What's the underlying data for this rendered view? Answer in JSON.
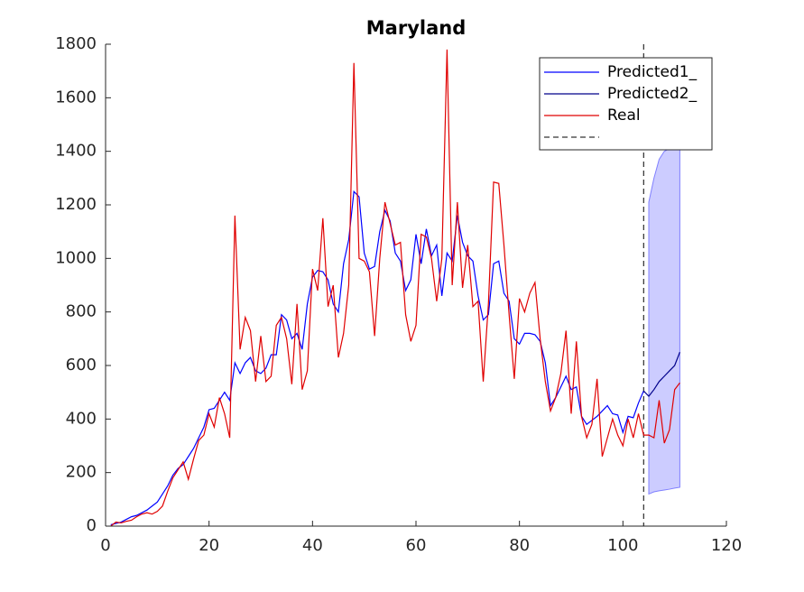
{
  "chart_data": {
    "type": "line",
    "title": "Maryland",
    "x": [
      1,
      2,
      3,
      4,
      5,
      6,
      7,
      8,
      9,
      10,
      11,
      12,
      13,
      14,
      15,
      16,
      17,
      18,
      19,
      20,
      21,
      22,
      23,
      24,
      25,
      26,
      27,
      28,
      29,
      30,
      31,
      32,
      33,
      34,
      35,
      36,
      37,
      38,
      39,
      40,
      41,
      42,
      43,
      44,
      45,
      46,
      47,
      48,
      49,
      50,
      51,
      52,
      53,
      54,
      55,
      56,
      57,
      58,
      59,
      60,
      61,
      62,
      63,
      64,
      65,
      66,
      67,
      68,
      69,
      70,
      71,
      72,
      73,
      74,
      75,
      76,
      77,
      78,
      79,
      80,
      81,
      82,
      83,
      84,
      85,
      86,
      87,
      88,
      89,
      90,
      91,
      92,
      93,
      94,
      95,
      96,
      97,
      98,
      99,
      100,
      101,
      102,
      103,
      104,
      105,
      106,
      107,
      108,
      109,
      110,
      111
    ],
    "series": [
      {
        "name": "Predicted1_",
        "color": "#0000ff",
        "values": [
          5,
          10,
          15,
          25,
          35,
          40,
          50,
          60,
          75,
          90,
          120,
          150,
          190,
          215,
          230,
          260,
          290,
          330,
          370,
          435,
          440,
          470,
          500,
          470,
          610,
          570,
          610,
          630,
          580,
          570,
          590,
          640,
          640,
          790,
          770,
          700,
          720,
          660,
          830,
          930,
          955,
          950,
          920,
          830,
          800,
          980,
          1070,
          1250,
          1230,
          1020,
          960,
          970,
          1100,
          1180,
          1140,
          1020,
          990,
          880,
          920,
          1090,
          980,
          1110,
          1010,
          1050,
          860,
          1020,
          990,
          1160,
          1060,
          1010,
          990,
          860,
          770,
          790,
          980,
          990,
          870,
          840,
          700,
          680,
          720,
          720,
          715,
          690,
          610,
          450,
          480,
          520,
          560,
          510,
          520,
          410,
          380,
          395,
          410,
          430,
          450,
          420,
          415,
          350,
          410,
          405,
          460,
          505,
          null,
          null,
          null,
          null,
          null,
          null,
          null
        ]
      },
      {
        "name": "Predicted2_",
        "color": "#00008b",
        "values": [
          null,
          null,
          null,
          null,
          null,
          null,
          null,
          null,
          null,
          null,
          null,
          null,
          null,
          null,
          null,
          null,
          null,
          null,
          null,
          null,
          null,
          null,
          null,
          null,
          null,
          null,
          null,
          null,
          null,
          null,
          null,
          null,
          null,
          null,
          null,
          null,
          null,
          null,
          null,
          null,
          null,
          null,
          null,
          null,
          null,
          null,
          null,
          null,
          null,
          null,
          null,
          null,
          null,
          null,
          null,
          null,
          null,
          null,
          null,
          null,
          null,
          null,
          null,
          null,
          null,
          null,
          null,
          null,
          null,
          null,
          null,
          null,
          null,
          null,
          null,
          null,
          null,
          null,
          null,
          null,
          null,
          null,
          null,
          null,
          null,
          null,
          null,
          null,
          null,
          null,
          null,
          null,
          null,
          null,
          null,
          null,
          null,
          null,
          null,
          null,
          null,
          null,
          null,
          505,
          485,
          510,
          540,
          560,
          580,
          600,
          650
        ]
      },
      {
        "name": "Real",
        "color": "#e00000",
        "values": [
          0,
          15,
          12,
          18,
          22,
          35,
          45,
          50,
          45,
          55,
          75,
          130,
          180,
          210,
          240,
          175,
          250,
          320,
          340,
          420,
          370,
          480,
          420,
          330,
          1160,
          660,
          780,
          730,
          540,
          710,
          540,
          560,
          750,
          780,
          700,
          530,
          830,
          510,
          580,
          960,
          880,
          1150,
          820,
          900,
          630,
          720,
          900,
          1730,
          1000,
          990,
          950,
          710,
          1000,
          1210,
          1130,
          1050,
          1060,
          790,
          690,
          750,
          1090,
          1080,
          1000,
          840,
          1000,
          1780,
          900,
          1210,
          890,
          1050,
          820,
          840,
          540,
          830,
          1285,
          1280,
          1050,
          790,
          550,
          850,
          800,
          870,
          910,
          700,
          540,
          430,
          480,
          570,
          730,
          420,
          690,
          410,
          330,
          380,
          550,
          260,
          330,
          400,
          340,
          300,
          400,
          330,
          420,
          340,
          340,
          330,
          470,
          310,
          360,
          510,
          535
        ]
      }
    ],
    "band": {
      "color": "#ccccff",
      "x": [
        105,
        106,
        107,
        108,
        109,
        110,
        111
      ],
      "lower": [
        120,
        128,
        132,
        135,
        138,
        142,
        145
      ],
      "upper": [
        1210,
        1300,
        1370,
        1400,
        1410,
        1420,
        1420
      ]
    },
    "vline": 104,
    "xlim": [
      0,
      120
    ],
    "xticks": [
      0,
      20,
      40,
      60,
      80,
      100,
      120
    ],
    "ylim": [
      0,
      1800
    ],
    "yticks": [
      0,
      200,
      400,
      600,
      800,
      1000,
      1200,
      1400,
      1600,
      1800
    ],
    "legend": "northeast"
  }
}
